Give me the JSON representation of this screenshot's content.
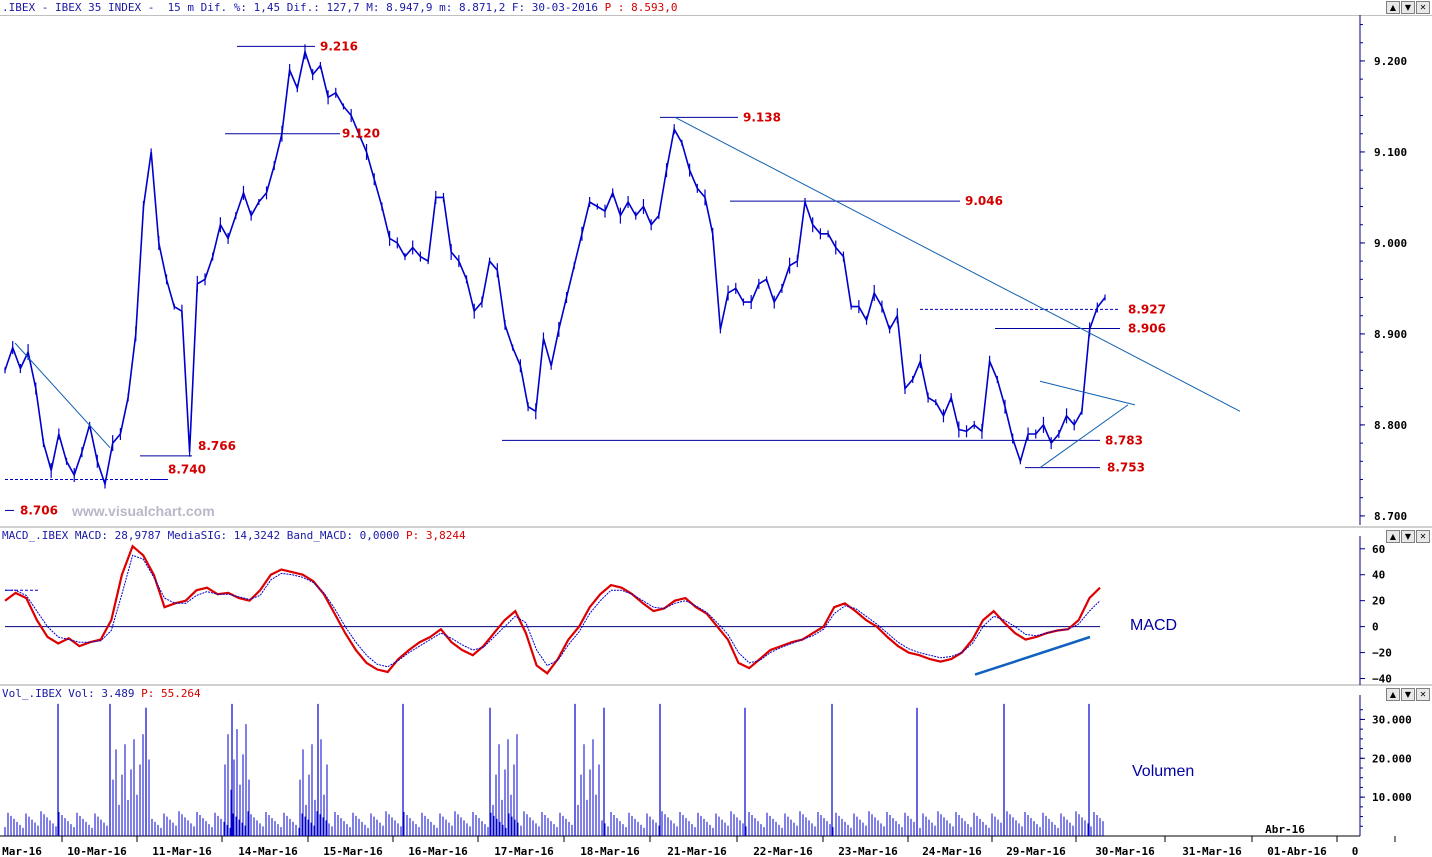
{
  "window": {
    "title_prefix": ".IBEX - IBEX 35 INDEX -  15 m Dif. %: 1,45 Dif.: 127,7 M: 8.947,9 m: 8.871,2 F: 30-03-2016 ",
    "title_last": "P : 8.593,0",
    "buttons": [
      "▲",
      "▼",
      "✕"
    ]
  },
  "watermark": "www.visualchart.com",
  "macd_panel": {
    "label_prefix": "MACD_.IBEX MACD: 28,9787 MediaSIG: 14,3242 Band_MACD: 0,0000 ",
    "label_last": "P: 3,8244",
    "name": "MACD"
  },
  "volume_panel": {
    "label_prefix": "Vol_.IBEX Vol: 3.489 ",
    "label_last": "P: 55.264",
    "name": "Volumen"
  },
  "colors": {
    "price": "#0000cc",
    "macd": "#dd0000",
    "signal": "#0000cc",
    "levels": "#d40000",
    "axis": "#000080"
  },
  "chart_data": [
    {
      "type": "line",
      "title": "IBEX 35 INDEX 15 m",
      "x_labels": [
        "Mar-16",
        "10-Mar-16",
        "11-Mar-16",
        "14-Mar-16",
        "15-Mar-16",
        "16-Mar-16",
        "17-Mar-16",
        "18-Mar-16",
        "21-Mar-16",
        "22-Mar-16",
        "23-Mar-16",
        "24-Mar-16",
        "29-Mar-16",
        "30-Mar-16",
        "31-Mar-16",
        "01-Abr-16",
        "0"
      ],
      "x_month_label": "Abr-16",
      "y_ticks": [
        "9.200",
        "9.100",
        "9.000",
        "8.900",
        "8.800",
        "8.700"
      ],
      "y_tick_values": [
        9200,
        9100,
        9000,
        8900,
        8800,
        8700
      ],
      "ylim": [
        8690,
        9245
      ],
      "series": [
        {
          "values": [
            8860,
            8885,
            8862,
            8880,
            8840,
            8780,
            8750,
            8790,
            8760,
            8745,
            8770,
            8800,
            8760,
            8735,
            8780,
            8790,
            8830,
            8900,
            9040,
            9100,
            9000,
            8960,
            8930,
            8925,
            8770,
            8955,
            8960,
            8985,
            9020,
            9005,
            9030,
            9055,
            9030,
            9045,
            9055,
            9085,
            9120,
            9190,
            9170,
            9210,
            9185,
            9195,
            9160,
            9165,
            9150,
            9140,
            9120,
            9100,
            9070,
            9040,
            9005,
            9000,
            8985,
            8995,
            8985,
            8980,
            9050,
            9050,
            8990,
            8980,
            8960,
            8925,
            8935,
            8980,
            8970,
            8910,
            8885,
            8865,
            8820,
            8815,
            8895,
            8865,
            8905,
            8940,
            8975,
            9010,
            9045,
            9040,
            9035,
            9055,
            9030,
            9045,
            9030,
            9040,
            9020,
            9030,
            9080,
            9125,
            9110,
            9080,
            9060,
            9050,
            9010,
            8905,
            8945,
            8950,
            8935,
            8935,
            8955,
            8960,
            8935,
            8950,
            8975,
            8980,
            9045,
            9020,
            9010,
            9010,
            8995,
            8985,
            8930,
            8930,
            8915,
            8945,
            8930,
            8905,
            8920,
            8840,
            8850,
            8870,
            8830,
            8825,
            8810,
            8830,
            8795,
            8793,
            8800,
            8793,
            8870,
            8850,
            8820,
            8785,
            8760,
            8790,
            8790,
            8800,
            8780,
            8790,
            8810,
            8800,
            8815,
            8905,
            8929,
            8940
          ]
        }
      ],
      "annotations": [
        {
          "label": "9.216",
          "value": 9216
        },
        {
          "label": "9.120",
          "value": 9120
        },
        {
          "label": "9.138",
          "value": 9138
        },
        {
          "label": "9.046",
          "value": 9046
        },
        {
          "label": "8.927",
          "value": 8927
        },
        {
          "label": "8.906",
          "value": 8906
        },
        {
          "label": "8.783",
          "value": 8783
        },
        {
          "label": "8.753",
          "value": 8753
        },
        {
          "label": "8.766",
          "value": 8766
        },
        {
          "label": "8.740",
          "value": 8740
        },
        {
          "label": "8.706",
          "value": 8706
        }
      ]
    },
    {
      "type": "line",
      "title": "MACD",
      "y_ticks": [
        "60",
        "40",
        "20",
        "0",
        "−20",
        "−40"
      ],
      "y_tick_values": [
        60,
        40,
        20,
        0,
        -20,
        -40
      ],
      "ylim": [
        -45,
        66
      ],
      "series": [
        {
          "name": "MACD",
          "values": [
            20,
            26,
            22,
            5,
            -8,
            -13,
            -9,
            -15,
            -12,
            -10,
            5,
            40,
            62,
            55,
            40,
            15,
            18,
            20,
            28,
            30,
            25,
            26,
            22,
            20,
            28,
            40,
            44,
            42,
            40,
            35,
            25,
            10,
            -5,
            -18,
            -28,
            -33,
            -35,
            -25,
            -18,
            -12,
            -8,
            -2,
            -12,
            -18,
            -22,
            -15,
            -5,
            5,
            12,
            -5,
            -30,
            -36,
            -25,
            -10,
            0,
            15,
            25,
            32,
            30,
            25,
            18,
            12,
            14,
            20,
            22,
            15,
            10,
            0,
            -10,
            -28,
            -32,
            -25,
            -18,
            -15,
            -12,
            -10,
            -5,
            0,
            15,
            18,
            12,
            5,
            0,
            -8,
            -15,
            -20,
            -22,
            -25,
            -27,
            -25,
            -20,
            -10,
            5,
            12,
            3,
            -5,
            -10,
            -8,
            -5,
            -3,
            -2,
            5,
            22,
            30
          ]
        },
        {
          "name": "MediaSIG",
          "values": [
            28,
            28,
            24,
            12,
            0,
            -8,
            -10,
            -12,
            -12,
            -11,
            -3,
            25,
            55,
            52,
            38,
            22,
            18,
            18,
            24,
            27,
            25,
            25,
            23,
            21,
            24,
            36,
            41,
            40,
            38,
            34,
            26,
            14,
            0,
            -12,
            -22,
            -29,
            -31,
            -26,
            -20,
            -15,
            -10,
            -5,
            -9,
            -14,
            -18,
            -16,
            -8,
            0,
            8,
            3,
            -18,
            -30,
            -26,
            -14,
            -4,
            10,
            20,
            28,
            28,
            25,
            20,
            15,
            14,
            18,
            20,
            16,
            11,
            3,
            -6,
            -20,
            -28,
            -26,
            -20,
            -16,
            -13,
            -10,
            -7,
            -2,
            10,
            16,
            14,
            8,
            2,
            -5,
            -12,
            -17,
            -20,
            -22,
            -24,
            -23,
            -20,
            -13,
            0,
            8,
            5,
            0,
            -6,
            -7,
            -5,
            -3,
            -2,
            2,
            12,
            20
          ]
        }
      ]
    },
    {
      "type": "bar",
      "title": "Volumen",
      "y_ticks": [
        "30.000",
        "20.000",
        "10.000"
      ],
      "y_tick_values": [
        30000,
        20000,
        10000
      ],
      "ylim": [
        0,
        35000
      ],
      "spike_values": [
        34000,
        34000,
        33000,
        34000,
        34000,
        34000,
        33000,
        34000,
        33000,
        34000,
        33000,
        34000,
        33000
      ],
      "base_level": 3489
    }
  ]
}
